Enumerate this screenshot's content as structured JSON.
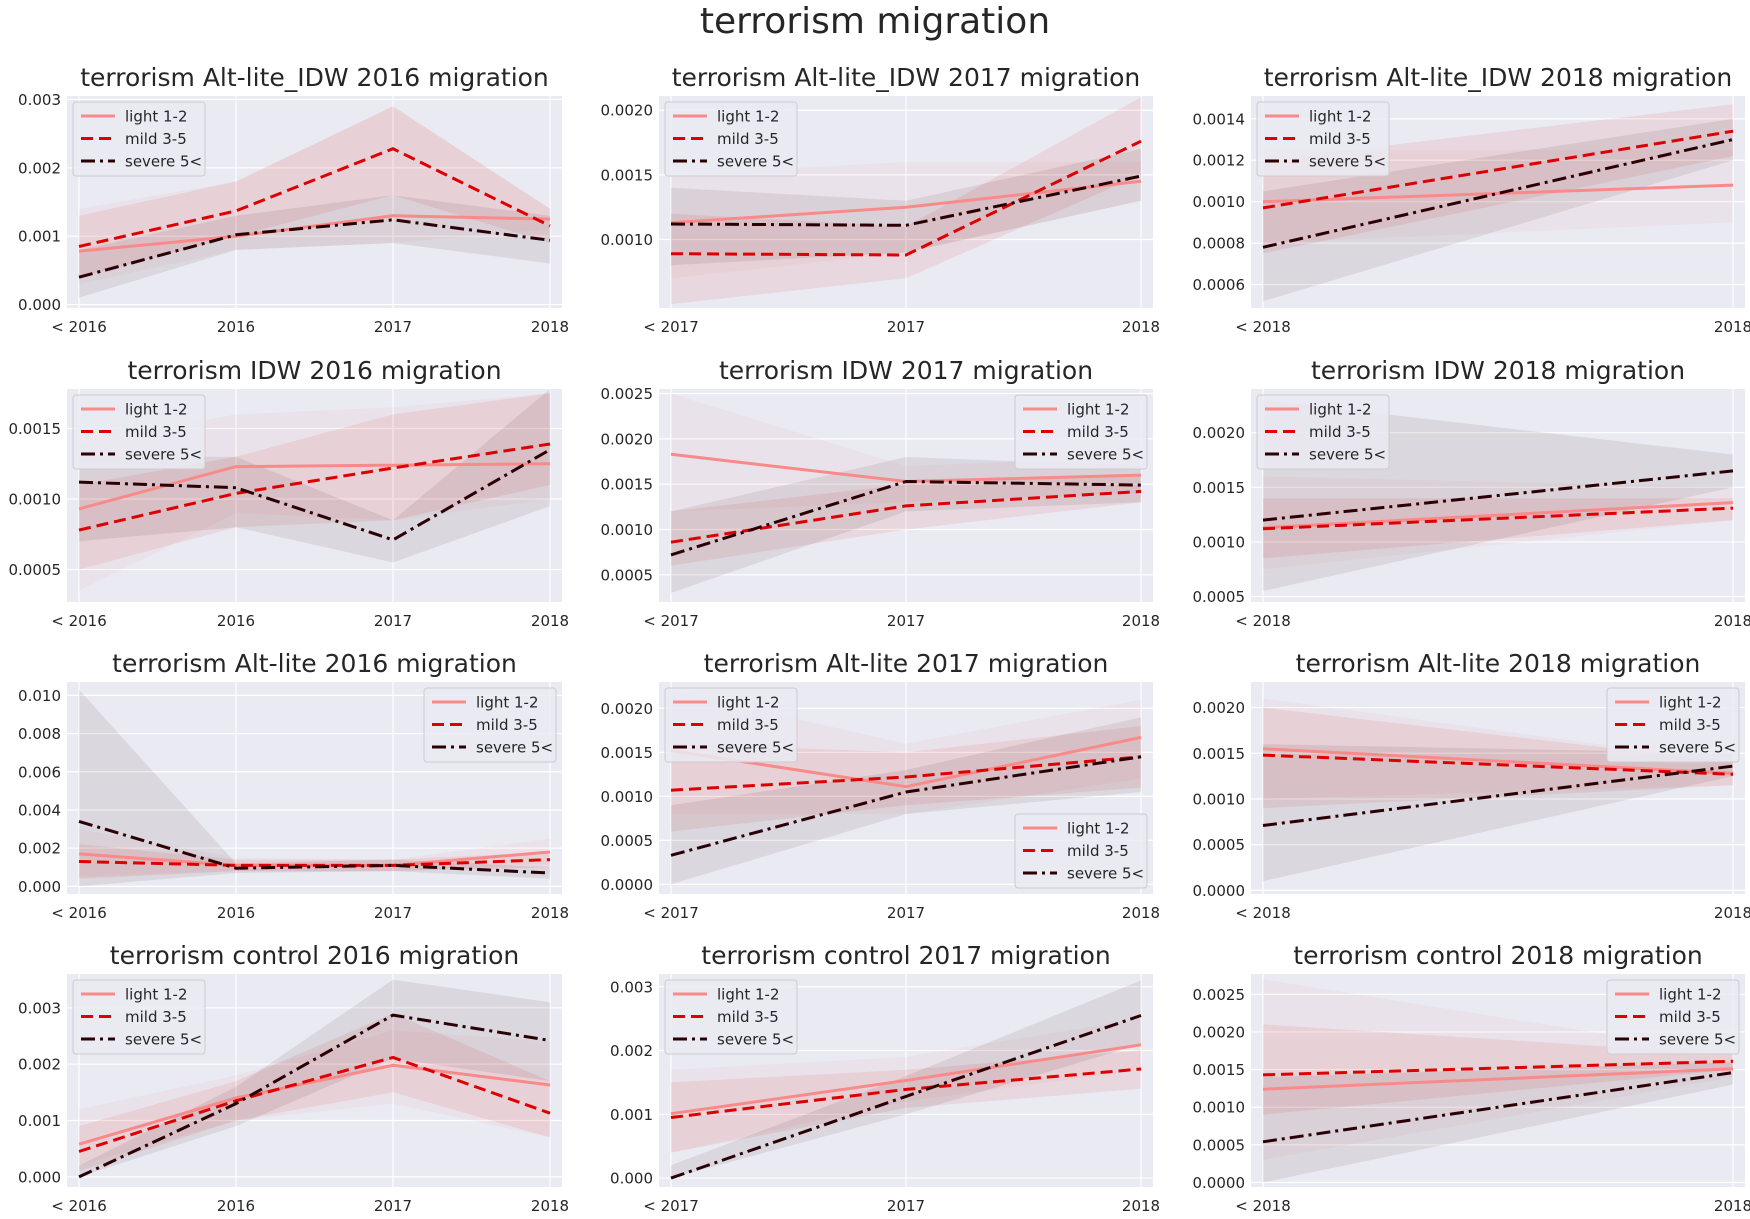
{
  "figure": {
    "title": "terrorism migration"
  },
  "colors": {
    "light": "#f88a8a",
    "mild": "#dd0000",
    "severe": "#2a0004",
    "background": "#eaeaf2",
    "grid": "#ffffff",
    "text": "#262626"
  },
  "chart_data": [
    {
      "type": "line",
      "title": "terrorism Alt-lite_IDW 2016 migration",
      "categories": [
        "< 2016",
        "2016",
        "2017",
        "2018"
      ],
      "ylim": [
        -5e-05,
        0.00305
      ],
      "yticks": [
        0.0,
        0.001,
        0.002,
        0.003
      ],
      "ytick_labels": [
        "0.000",
        "0.001",
        "0.002",
        "0.003"
      ],
      "legend": "upper-left",
      "series": [
        {
          "name": "light 1-2",
          "values": [
            0.00078,
            0.001,
            0.0013,
            0.00125
          ],
          "lower": [
            0.0003,
            0.0008,
            0.0009,
            0.0011
          ],
          "upper": [
            0.0014,
            0.0018,
            0.0029,
            0.0014
          ]
        },
        {
          "name": "mild 3-5",
          "values": [
            0.00085,
            0.00137,
            0.00228,
            0.00115
          ],
          "lower": [
            0.0004,
            0.001,
            0.0016,
            0.0009
          ],
          "upper": [
            0.0013,
            0.0018,
            0.0029,
            0.0014
          ]
        },
        {
          "name": "severe 5<",
          "values": [
            0.0004,
            0.00102,
            0.00124,
            0.00094
          ],
          "lower": [
            0.0001,
            0.0008,
            0.0009,
            0.0006
          ],
          "upper": [
            0.0008,
            0.0013,
            0.0016,
            0.0013
          ]
        }
      ]
    },
    {
      "type": "line",
      "title": "terrorism Alt-lite_IDW 2017 migration",
      "categories": [
        "< 2017",
        "2017",
        "2018"
      ],
      "ylim": [
        0.00047,
        0.00211
      ],
      "yticks": [
        0.001,
        0.0015,
        0.002
      ],
      "ytick_labels": [
        "0.0010",
        "0.0015",
        "0.0020"
      ],
      "legend": "upper-left",
      "series": [
        {
          "name": "light 1-2",
          "values": [
            0.00113,
            0.00125,
            0.00145
          ],
          "lower": [
            0.0007,
            0.0009,
            0.0013
          ],
          "upper": [
            0.0015,
            0.0016,
            0.0016
          ]
        },
        {
          "name": "mild 3-5",
          "values": [
            0.00089,
            0.00088,
            0.00176
          ],
          "lower": [
            0.0005,
            0.0007,
            0.0015
          ],
          "upper": [
            0.0012,
            0.0011,
            0.0021
          ]
        },
        {
          "name": "severe 5<",
          "values": [
            0.00112,
            0.00111,
            0.00149
          ],
          "lower": [
            0.0008,
            0.0009,
            0.0013
          ],
          "upper": [
            0.0014,
            0.0013,
            0.0017
          ]
        }
      ]
    },
    {
      "type": "line",
      "title": "terrorism Alt-lite_IDW 2018 migration",
      "categories": [
        "< 2018",
        "2018"
      ],
      "ylim": [
        0.000487,
        0.00151
      ],
      "yticks": [
        0.0006,
        0.0008,
        0.001,
        0.0012,
        0.0014
      ],
      "ytick_labels": [
        "0.0006",
        "0.0008",
        "0.0010",
        "0.0012",
        "0.0014"
      ],
      "legend": "upper-left",
      "series": [
        {
          "name": "light 1-2",
          "values": [
            0.001,
            0.00108
          ],
          "lower": [
            0.0008,
            0.0009
          ],
          "upper": [
            0.00125,
            0.00125
          ]
        },
        {
          "name": "mild 3-5",
          "values": [
            0.00097,
            0.00134
          ],
          "lower": [
            0.00075,
            0.00122
          ],
          "upper": [
            0.0012,
            0.00147
          ]
        },
        {
          "name": "severe 5<",
          "values": [
            0.00078,
            0.0013
          ],
          "lower": [
            0.00052,
            0.0012
          ],
          "upper": [
            0.00105,
            0.0014
          ]
        }
      ]
    },
    {
      "type": "line",
      "title": "terrorism IDW 2016 migration",
      "categories": [
        "< 2016",
        "2016",
        "2017",
        "2018"
      ],
      "ylim": [
        0.00027,
        0.00178
      ],
      "yticks": [
        0.0005,
        0.001,
        0.0015
      ],
      "ytick_labels": [
        "0.0005",
        "0.0010",
        "0.0015"
      ],
      "legend": "upper-left",
      "series": [
        {
          "name": "light 1-2",
          "values": [
            0.00093,
            0.00123,
            0.00124,
            0.00125
          ],
          "lower": [
            0.00035,
            0.0009,
            0.00085,
            0.001
          ],
          "upper": [
            0.0014,
            0.0016,
            0.00165,
            0.00175
          ]
        },
        {
          "name": "mild 3-5",
          "values": [
            0.00078,
            0.00104,
            0.00122,
            0.00139
          ],
          "lower": [
            0.0005,
            0.0008,
            0.00085,
            0.0011
          ],
          "upper": [
            0.0011,
            0.0013,
            0.0016,
            0.00175
          ]
        },
        {
          "name": "severe 5<",
          "values": [
            0.00112,
            0.00108,
            0.00071,
            0.00135
          ],
          "lower": [
            0.0007,
            0.0008,
            0.00055,
            0.00095
          ],
          "upper": [
            0.0013,
            0.0013,
            0.00085,
            0.00178
          ]
        }
      ]
    },
    {
      "type": "line",
      "title": "terrorism IDW 2017 migration",
      "categories": [
        "< 2017",
        "2017",
        "2018"
      ],
      "ylim": [
        0.0002,
        0.00255
      ],
      "yticks": [
        0.0005,
        0.001,
        0.0015,
        0.002,
        0.0025
      ],
      "ytick_labels": [
        "0.0005",
        "0.0010",
        "0.0015",
        "0.0020",
        "0.0025"
      ],
      "legend": "upper-right",
      "series": [
        {
          "name": "light 1-2",
          "values": [
            0.00183,
            0.00153,
            0.0016
          ],
          "lower": [
            0.0012,
            0.0013,
            0.0014
          ],
          "upper": [
            0.0025,
            0.0017,
            0.0018
          ]
        },
        {
          "name": "mild 3-5",
          "values": [
            0.00086,
            0.00126,
            0.00142
          ],
          "lower": [
            0.0006,
            0.001,
            0.0013
          ],
          "upper": [
            0.0012,
            0.0015,
            0.0016
          ]
        },
        {
          "name": "severe 5<",
          "values": [
            0.00072,
            0.00153,
            0.00149
          ],
          "lower": [
            0.0003,
            0.0012,
            0.0013
          ],
          "upper": [
            0.0012,
            0.0018,
            0.0017
          ]
        }
      ]
    },
    {
      "type": "line",
      "title": "terrorism IDW 2018 migration",
      "categories": [
        "< 2018",
        "2018"
      ],
      "ylim": [
        0.00045,
        0.0024
      ],
      "yticks": [
        0.0005,
        0.001,
        0.0015,
        0.002
      ],
      "ytick_labels": [
        "0.0005",
        "0.0010",
        "0.0015",
        "0.0020"
      ],
      "legend": "upper-left",
      "series": [
        {
          "name": "light 1-2",
          "values": [
            0.00113,
            0.00136
          ],
          "lower": [
            0.00075,
            0.0012
          ],
          "upper": [
            0.0016,
            0.0015
          ]
        },
        {
          "name": "mild 3-5",
          "values": [
            0.00112,
            0.00131
          ],
          "lower": [
            0.00085,
            0.0012
          ],
          "upper": [
            0.0014,
            0.0014
          ]
        },
        {
          "name": "severe 5<",
          "values": [
            0.0012,
            0.00165
          ],
          "lower": [
            0.00055,
            0.0015
          ],
          "upper": [
            0.0023,
            0.0018
          ]
        }
      ]
    },
    {
      "type": "line",
      "title": "terrorism Alt-lite 2016 migration",
      "categories": [
        "< 2016",
        "2016",
        "2017",
        "2018"
      ],
      "ylim": [
        -0.0004,
        0.0107
      ],
      "yticks": [
        0.0,
        0.002,
        0.004,
        0.006,
        0.008,
        0.01
      ],
      "ytick_labels": [
        "0.000",
        "0.002",
        "0.004",
        "0.006",
        "0.008",
        "0.010"
      ],
      "legend": "upper-right",
      "series": [
        {
          "name": "light 1-2",
          "values": [
            0.0017,
            0.0011,
            0.0011,
            0.0018
          ],
          "lower": [
            0.0005,
            0.0008,
            0.0008,
            0.0012
          ],
          "upper": [
            0.003,
            0.0015,
            0.0014,
            0.0025
          ]
        },
        {
          "name": "mild 3-5",
          "values": [
            0.0013,
            0.0011,
            0.0011,
            0.0014
          ],
          "lower": [
            0.0004,
            0.0008,
            0.0008,
            0.001
          ],
          "upper": [
            0.0022,
            0.0014,
            0.0014,
            0.0018
          ]
        },
        {
          "name": "severe 5<",
          "values": [
            0.0034,
            0.00095,
            0.0011,
            0.0007
          ],
          "lower": [
            0.0,
            0.0007,
            0.0008,
            0.0004
          ],
          "upper": [
            0.0103,
            0.0012,
            0.0014,
            0.001
          ]
        }
      ]
    },
    {
      "type": "line",
      "title": "terrorism Alt-lite 2017 migration",
      "categories": [
        "< 2017",
        "2017",
        "2018"
      ],
      "ylim": [
        -0.00011,
        0.0023
      ],
      "yticks": [
        0.0,
        0.0005,
        0.001,
        0.0015,
        0.002
      ],
      "ytick_labels": [
        "0.0000",
        "0.0005",
        "0.0010",
        "0.0015",
        "0.0020"
      ],
      "legend": "upper-left + lower-right",
      "series": [
        {
          "name": "light 1-2",
          "values": [
            0.00152,
            0.00111,
            0.00167
          ],
          "lower": [
            0.0008,
            0.0008,
            0.0012
          ],
          "upper": [
            0.0022,
            0.0016,
            0.0021
          ]
        },
        {
          "name": "mild 3-5",
          "values": [
            0.00107,
            0.00122,
            0.00145
          ],
          "lower": [
            0.0006,
            0.0009,
            0.0011
          ],
          "upper": [
            0.0016,
            0.0015,
            0.0018
          ]
        },
        {
          "name": "severe 5<",
          "values": [
            0.00033,
            0.00105,
            0.00145
          ],
          "lower": [
            0.0,
            0.0008,
            0.00105
          ],
          "upper": [
            0.0009,
            0.0013,
            0.0019
          ]
        }
      ]
    },
    {
      "type": "line",
      "title": "terrorism Alt-lite 2018 migration",
      "categories": [
        "< 2018",
        "2018"
      ],
      "ylim": [
        -4e-05,
        0.00228
      ],
      "yticks": [
        0.0,
        0.0005,
        0.001,
        0.0015,
        0.002
      ],
      "ytick_labels": [
        "0.0000",
        "0.0005",
        "0.0010",
        "0.0015",
        "0.0020"
      ],
      "legend": "upper-right",
      "series": [
        {
          "name": "light 1-2",
          "values": [
            0.00155,
            0.00128
          ],
          "lower": [
            0.001,
            0.00115
          ],
          "upper": [
            0.0021,
            0.0014
          ]
        },
        {
          "name": "mild 3-5",
          "values": [
            0.00148,
            0.00127
          ],
          "lower": [
            0.0009,
            0.00115
          ],
          "upper": [
            0.002,
            0.0014
          ]
        },
        {
          "name": "severe 5<",
          "values": [
            0.00071,
            0.00136
          ],
          "lower": [
            0.0001,
            0.00125
          ],
          "upper": [
            0.0016,
            0.0015
          ]
        }
      ]
    },
    {
      "type": "line",
      "title": "terrorism control 2016 migration",
      "categories": [
        "< 2016",
        "2016",
        "2017",
        "2018"
      ],
      "ylim": [
        -0.00018,
        0.0036
      ],
      "yticks": [
        0.0,
        0.001,
        0.002,
        0.003
      ],
      "ytick_labels": [
        "0.000",
        "0.001",
        "0.002",
        "0.003"
      ],
      "legend": "upper-left",
      "series": [
        {
          "name": "light 1-2",
          "values": [
            0.00058,
            0.0014,
            0.00198,
            0.00163
          ],
          "lower": [
            0.0002,
            0.001,
            0.0013,
            0.0007
          ],
          "upper": [
            0.0012,
            0.0018,
            0.0026,
            0.0024
          ]
        },
        {
          "name": "mild 3-5",
          "values": [
            0.00045,
            0.00135,
            0.00212,
            0.00113
          ],
          "lower": [
            0.0001,
            0.001,
            0.0015,
            0.0007
          ],
          "upper": [
            0.0009,
            0.0017,
            0.0029,
            0.0017
          ]
        },
        {
          "name": "severe 5<",
          "values": [
            0.0,
            0.0013,
            0.00287,
            0.00242
          ],
          "lower": [
            0.0,
            0.0009,
            0.0021,
            0.0017
          ],
          "upper": [
            0.0002,
            0.0016,
            0.0035,
            0.0031
          ]
        }
      ]
    },
    {
      "type": "line",
      "title": "terrorism control 2017 migration",
      "categories": [
        "< 2017",
        "2017",
        "2018"
      ],
      "ylim": [
        -0.00014,
        0.0032
      ],
      "yticks": [
        0.0,
        0.001,
        0.002,
        0.003
      ],
      "ytick_labels": [
        "0.000",
        "0.001",
        "0.002",
        "0.003"
      ],
      "legend": "upper-left",
      "series": [
        {
          "name": "light 1-2",
          "values": [
            0.00101,
            0.00153,
            0.00209
          ],
          "lower": [
            0.0004,
            0.0012,
            0.0017
          ],
          "upper": [
            0.0017,
            0.0019,
            0.0025
          ]
        },
        {
          "name": "mild 3-5",
          "values": [
            0.00095,
            0.00139,
            0.00171
          ],
          "lower": [
            0.0004,
            0.0011,
            0.0014
          ],
          "upper": [
            0.0015,
            0.0017,
            0.002
          ]
        },
        {
          "name": "severe 5<",
          "values": [
            0.0,
            0.00128,
            0.00255
          ],
          "lower": [
            0.0,
            0.001,
            0.0021
          ],
          "upper": [
            0.0002,
            0.0016,
            0.0031
          ]
        }
      ]
    },
    {
      "type": "line",
      "title": "terrorism control 2018 migration",
      "categories": [
        "< 2018",
        "2018"
      ],
      "ylim": [
        -6e-05,
        0.00277
      ],
      "yticks": [
        0.0,
        0.0005,
        0.001,
        0.0015,
        0.002,
        0.0025
      ],
      "ytick_labels": [
        "0.0000",
        "0.0005",
        "0.0010",
        "0.0015",
        "0.0020",
        "0.0025"
      ],
      "legend": "upper-right",
      "series": [
        {
          "name": "light 1-2",
          "values": [
            0.00124,
            0.00151
          ],
          "lower": [
            0.0003,
            0.0014
          ],
          "upper": [
            0.0027,
            0.0017
          ]
        },
        {
          "name": "mild 3-5",
          "values": [
            0.00143,
            0.00161
          ],
          "lower": [
            0.0009,
            0.0015
          ],
          "upper": [
            0.0021,
            0.0017
          ]
        },
        {
          "name": "severe 5<",
          "values": [
            0.00054,
            0.00146
          ],
          "lower": [
            0.0,
            0.0013
          ],
          "upper": [
            0.0014,
            0.0016
          ]
        }
      ]
    }
  ]
}
